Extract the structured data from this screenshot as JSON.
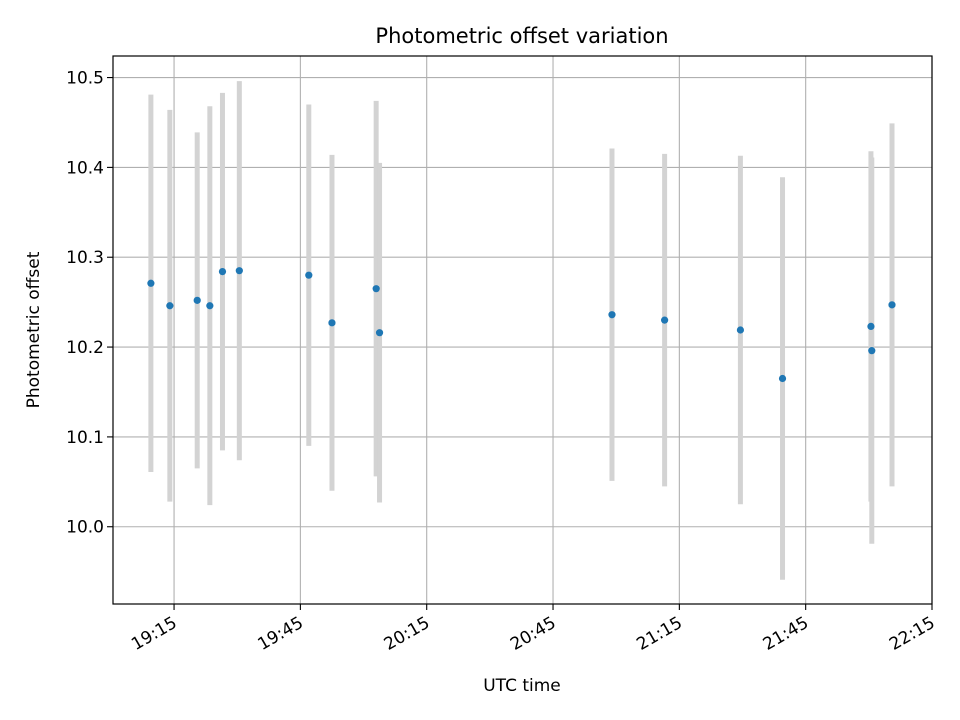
{
  "chart_data": {
    "type": "scatter",
    "title": "Photometric offset variation",
    "xlabel": "UTC time",
    "ylabel": "Photometric offset",
    "x_ticks": [
      "19:15",
      "19:45",
      "20:15",
      "20:45",
      "21:15",
      "21:45",
      "22:15"
    ],
    "x_tick_minutes": [
      1155,
      1185,
      1215,
      1245,
      1275,
      1305,
      1335
    ],
    "xlim": [
      "19:00.5",
      "22:15"
    ],
    "xlim_minutes": [
      1140.5,
      1335
    ],
    "y_ticks": [
      10.0,
      10.1,
      10.2,
      10.3,
      10.4,
      10.5
    ],
    "ylim": [
      9.914,
      10.524
    ],
    "grid": true,
    "marker_color": "#1f77b4",
    "errorbar_color": "#d3d3d3",
    "points": [
      {
        "time": "19:09.5",
        "y": 10.271,
        "err": 0.21
      },
      {
        "time": "19:14.0",
        "y": 10.246,
        "err": 0.218
      },
      {
        "time": "19:20.5",
        "y": 10.252,
        "err": 0.187
      },
      {
        "time": "19:23.5",
        "y": 10.246,
        "err": 0.222
      },
      {
        "time": "19:26.5",
        "y": 10.284,
        "err": 0.199
      },
      {
        "time": "19:30.5",
        "y": 10.285,
        "err": 0.211
      },
      {
        "time": "19:47.0",
        "y": 10.28,
        "err": 0.19
      },
      {
        "time": "19:52.5",
        "y": 10.227,
        "err": 0.187
      },
      {
        "time": "20:03.0",
        "y": 10.265,
        "err": 0.209
      },
      {
        "time": "20:03.8",
        "y": 10.216,
        "err": 0.189
      },
      {
        "time": "20:59.0",
        "y": 10.236,
        "err": 0.185
      },
      {
        "time": "21:11.5",
        "y": 10.23,
        "err": 0.185
      },
      {
        "time": "21:29.5",
        "y": 10.219,
        "err": 0.194
      },
      {
        "time": "21:39.5",
        "y": 10.165,
        "err": 0.224
      },
      {
        "time": "22:00.5",
        "y": 10.223,
        "err": 0.195
      },
      {
        "time": "22:00.7",
        "y": 10.196,
        "err": 0.215
      },
      {
        "time": "22:05.5",
        "y": 10.247,
        "err": 0.202
      }
    ]
  }
}
